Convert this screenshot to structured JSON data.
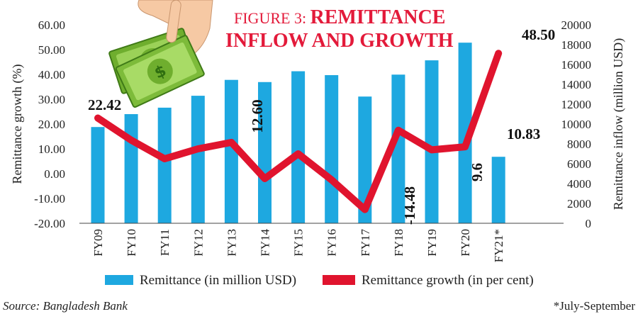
{
  "chart_data": {
    "type": "bar",
    "title_prefix": "FIGURE 3: ",
    "title_line1": "REMITTANCE",
    "title_line2": "INFLOW AND GROWTH",
    "ylabel_left": "Remittance growth (%)",
    "ylabel_right": "Remittance inflow (million USD)",
    "categories": [
      "FY09",
      "FY10",
      "FY11",
      "FY12",
      "FY13",
      "FY14",
      "FY15",
      "FY16",
      "FY17",
      "FY18",
      "FY19",
      "FY20",
      "FY21*"
    ],
    "left_ylim": [
      -20,
      60
    ],
    "left_ticks": [
      "-20.00",
      "-10.00",
      "0.00",
      "10.00",
      "20.00",
      "30.00",
      "40.00",
      "50.00",
      "60.00"
    ],
    "right_ylim": [
      0,
      20000
    ],
    "right_ticks": [
      "0",
      "2000",
      "4000",
      "6000",
      "8000",
      "10000",
      "12000",
      "14000",
      "16000",
      "18000",
      "20000"
    ],
    "series": [
      {
        "name": "Remittance (in million USD)",
        "type": "bar",
        "axis": "right",
        "color": "#1ea8e0",
        "values": [
          9700,
          11000,
          11650,
          12850,
          14450,
          14230,
          15320,
          14930,
          12770,
          14980,
          16420,
          18200,
          6700
        ]
      },
      {
        "name": "Remittance growth (in per cent)",
        "type": "line",
        "axis": "left",
        "color": "#e0142e",
        "values": [
          22.42,
          13.5,
          6.0,
          10.0,
          12.6,
          -2.0,
          8.0,
          -2.5,
          -14.48,
          17.5,
          9.6,
          10.83,
          48.5
        ]
      }
    ],
    "data_labels": [
      "22.42",
      "12.60",
      "-14.48",
      "9.6",
      "10.83",
      "48.50"
    ],
    "legend_position": "bottom",
    "grid": false
  },
  "footer": {
    "source": "Source: Bangladesh Bank",
    "note": "*July-September"
  },
  "illustration": {
    "icon": "hand-holding-money-icon",
    "money_color": "#8cc63f",
    "hand_color": "#f6c9a4"
  }
}
